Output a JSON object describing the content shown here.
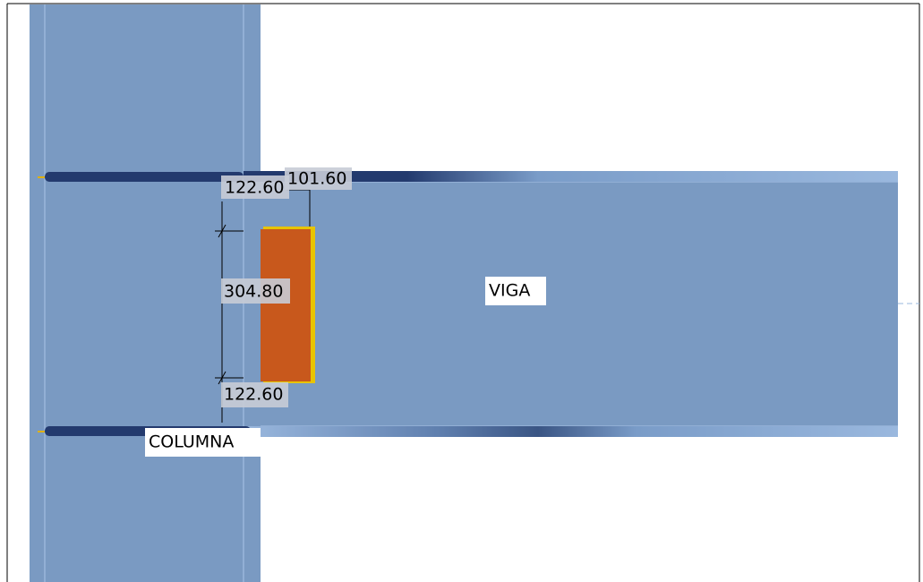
{
  "labels": {
    "beam": "VIGA",
    "column": "COLUMNA"
  },
  "dimensions": {
    "top_gap": "122.60",
    "plate_width": "101.60",
    "plate_height": "304.80",
    "bottom_gap": "122.60"
  }
}
